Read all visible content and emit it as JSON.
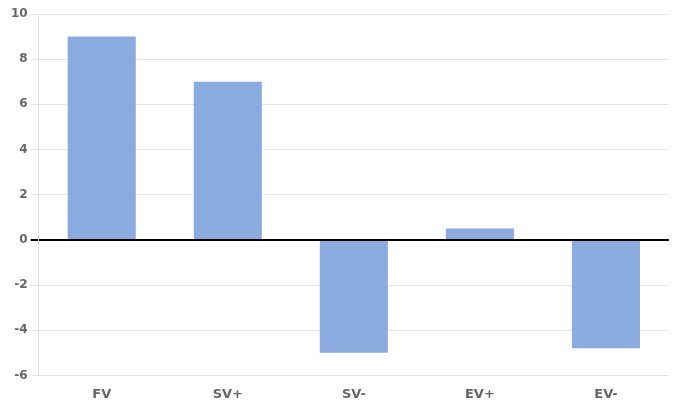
{
  "chart_data": {
    "type": "bar",
    "categories": [
      "FV",
      "SV+",
      "SV-",
      "EV+",
      "EV-"
    ],
    "values": [
      9,
      7,
      -5,
      0.5,
      -4.8
    ],
    "color": "#8aabe0",
    "ylim": [
      -6,
      10
    ],
    "yticks": [
      -6,
      -4,
      -2,
      0,
      2,
      4,
      6,
      8,
      10
    ],
    "grid": true
  }
}
